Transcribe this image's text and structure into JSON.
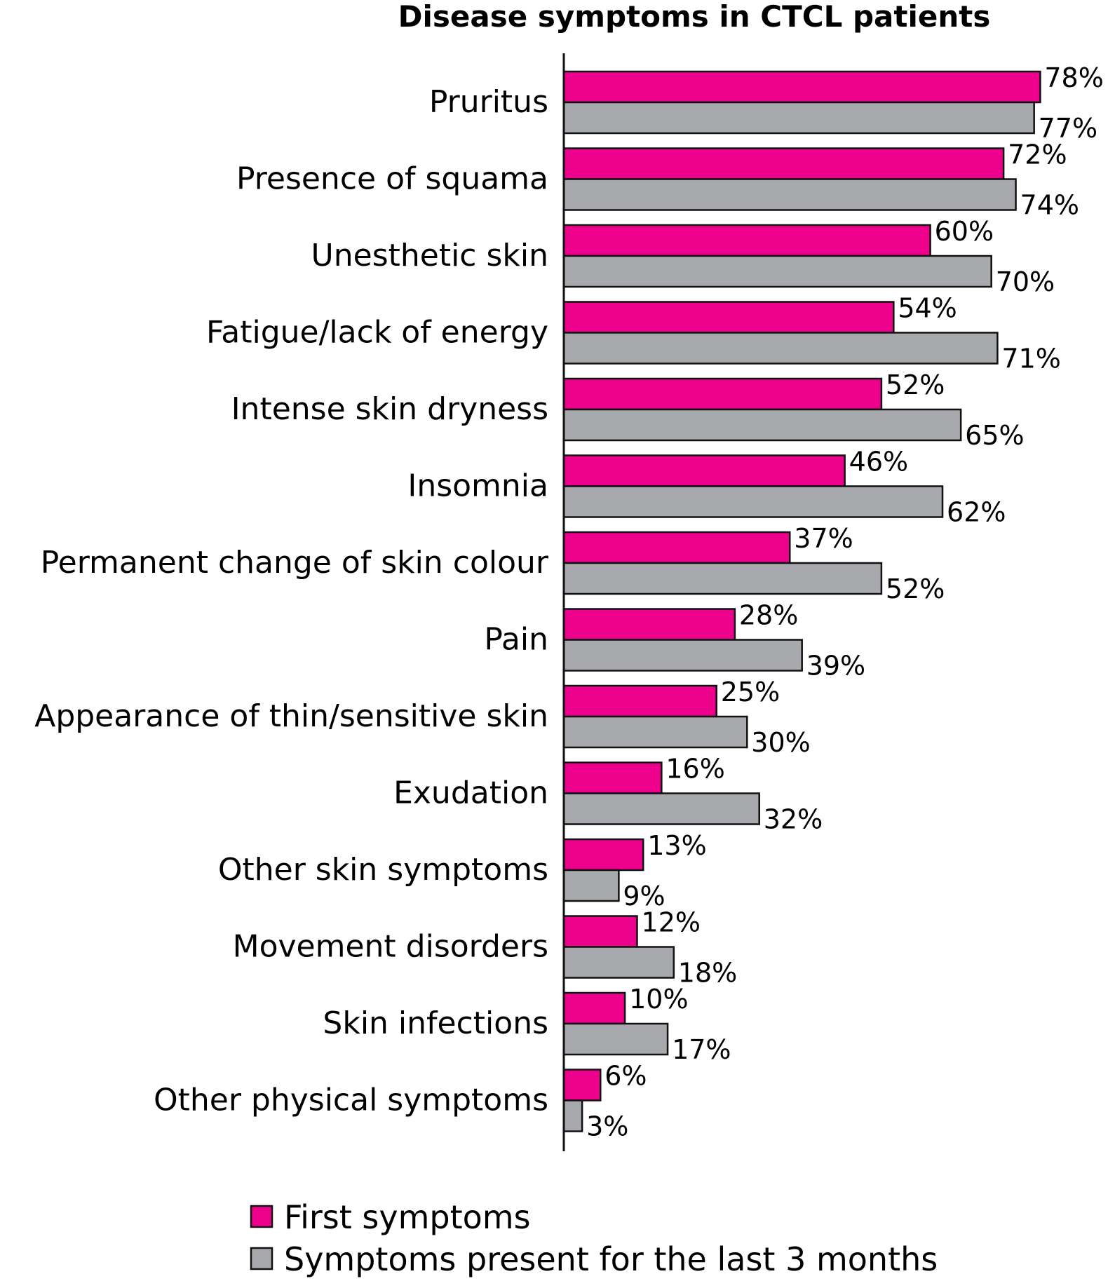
{
  "chart_data": {
    "type": "bar",
    "orientation": "horizontal",
    "title": "Disease symptoms in CTCL patients",
    "xlabel": "",
    "ylabel": "",
    "xlim": [
      0,
      100
    ],
    "grid": false,
    "legend_position": "bottom",
    "categories": [
      "Pruritus",
      "Presence of squama",
      "Unesthetic skin",
      "Fatigue/lack of energy",
      "Intense skin dryness",
      "Insomnia",
      "Permanent change of skin colour",
      "Pain",
      "Appearance of thin/sensitive skin",
      "Exudation",
      "Other skin symptoms",
      "Movement disorders",
      "Skin infections",
      "Other physical symptoms"
    ],
    "series": [
      {
        "name": "First symptoms",
        "color": "#ec008c",
        "values": [
          78,
          72,
          60,
          54,
          52,
          46,
          37,
          28,
          25,
          16,
          13,
          12,
          10,
          6
        ],
        "labels": [
          "78%",
          "72%",
          "60%",
          "54%",
          "52%",
          "46%",
          "37%",
          "28%",
          "25%",
          "16%",
          "13%",
          "12%",
          "10%",
          "6%"
        ]
      },
      {
        "name": "Symptoms present for the last 3 months",
        "color": "#a7a9ac",
        "values": [
          77,
          74,
          70,
          71,
          65,
          62,
          52,
          39,
          30,
          32,
          9,
          18,
          17,
          3
        ],
        "labels": [
          "77%",
          "74%",
          "70%",
          "71%",
          "65%",
          "62%",
          "52%",
          "39%",
          "30%",
          "32%",
          "9%",
          "18%",
          "17%",
          "3%"
        ]
      }
    ]
  }
}
